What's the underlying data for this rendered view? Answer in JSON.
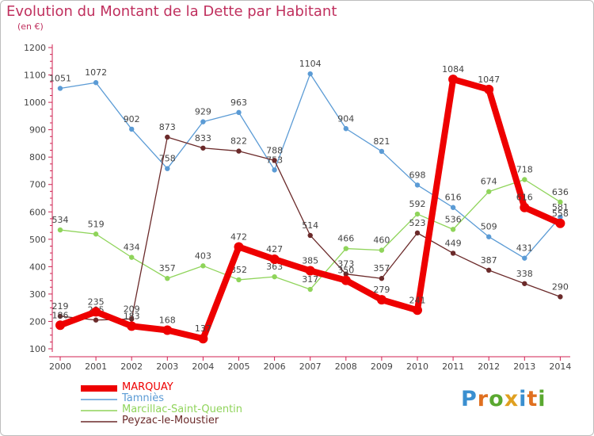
{
  "title": "Evolution du Montant de la Dette par Habitant",
  "subtitle": "(en €)",
  "logo_text": "Proxiti",
  "logo_colors": [
    "#3a8fd0",
    "#e07020",
    "#5aa830",
    "#e0a020",
    "#3a8fd0",
    "#e07020",
    "#5aa830"
  ],
  "chart_data": {
    "type": "line",
    "title": "Evolution du Montant de la Dette par Habitant",
    "unit": "(en €)",
    "x": [
      "2000",
      "2001",
      "2002",
      "2003",
      "2004",
      "2005",
      "2006",
      "2007",
      "2008",
      "2009",
      "2010",
      "2011",
      "2012",
      "2013",
      "2014"
    ],
    "ylim": [
      100,
      1200
    ],
    "yticks": [
      100,
      200,
      300,
      400,
      500,
      600,
      700,
      800,
      900,
      1000,
      1100,
      1200
    ],
    "grid": false,
    "legend": "bottom-left",
    "series": [
      {
        "name": "Tamniès",
        "color": "#5b9bd5",
        "values": [
          1051,
          1072,
          902,
          758,
          929,
          963,
          753,
          1104,
          904,
          821,
          698,
          616,
          509,
          431,
          581
        ]
      },
      {
        "name": "Marcillac-Saint-Quentin",
        "color": "#8fd45a",
        "values": [
          534,
          519,
          434,
          357,
          403,
          352,
          363,
          317,
          466,
          460,
          592,
          536,
          674,
          718,
          636
        ]
      },
      {
        "name": "Peyzac-le-Moustier",
        "color": "#6b2a2a",
        "values": [
          219,
          205,
          209,
          873,
          833,
          822,
          788,
          514,
          373,
          357,
          523,
          449,
          387,
          338,
          290
        ]
      },
      {
        "name": "MARQUAY",
        "color": "#ee0000",
        "values": [
          186,
          235,
          183,
          168,
          137,
          472,
          427,
          385,
          350,
          279,
          241,
          1084,
          1047,
          616,
          558
        ]
      }
    ]
  }
}
